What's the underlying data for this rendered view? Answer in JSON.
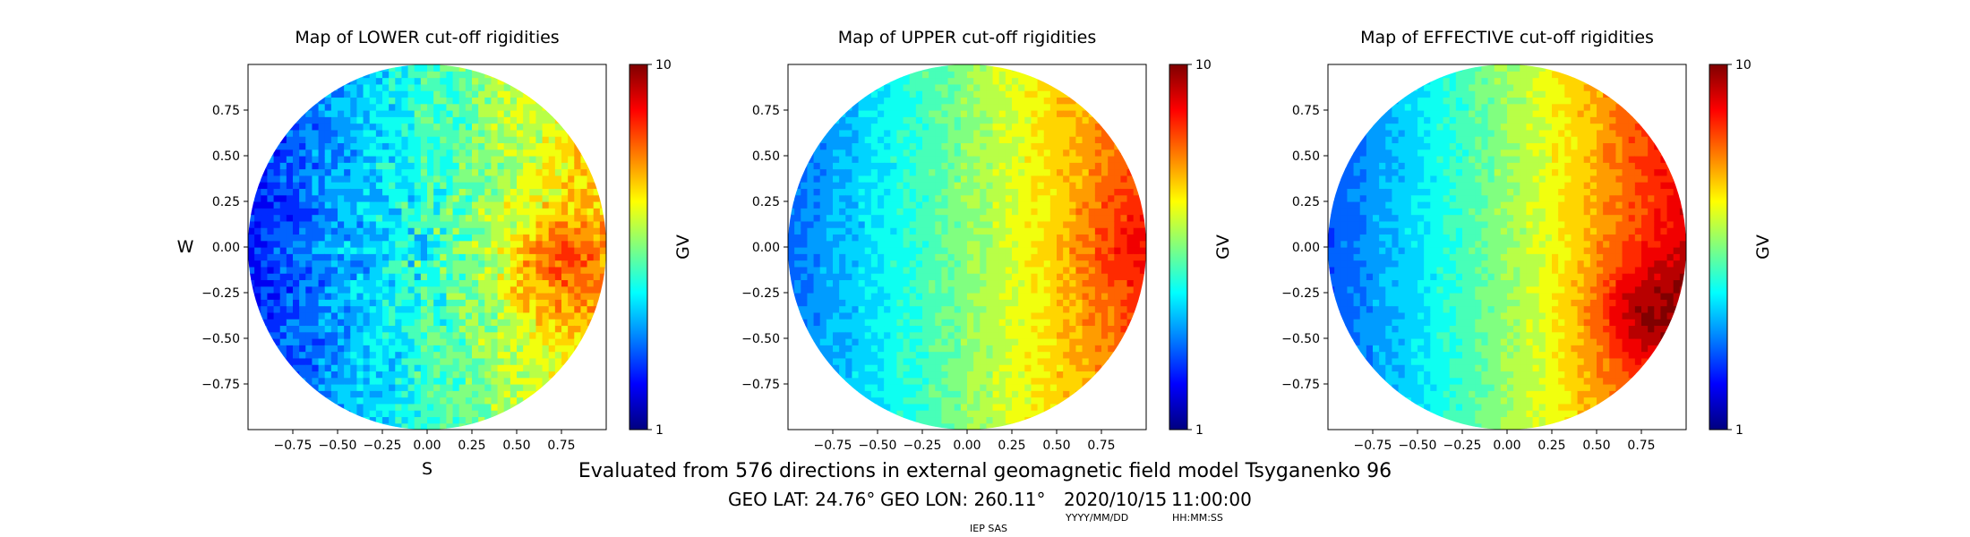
{
  "chart_data": [
    {
      "type": "heatmap",
      "title": "Map of LOWER cut-off rigidities",
      "xlabel": "S",
      "ylabel": "W",
      "xlim": [
        -1,
        1
      ],
      "ylim": [
        -1,
        1
      ],
      "xticks": [
        "−0.75",
        "−0.50",
        "−0.25",
        "0.00",
        "0.25",
        "0.50",
        "0.75"
      ],
      "yticks": [
        "0.75",
        "0.50",
        "0.25",
        "0.00",
        "−0.25",
        "−0.50",
        "−0.75"
      ],
      "colorbar": {
        "label": "GV",
        "min": 1,
        "max": 10,
        "ticks": [
          "10",
          "1"
        ],
        "colormap": "jet"
      },
      "field": {
        "west_edge": 2.3,
        "east_edge": 7.2,
        "center": 4.8,
        "bump": [
          0.7,
          -0.1,
          1.5
        ],
        "spokes": true,
        "noise": 1.2
      }
    },
    {
      "type": "heatmap",
      "title": "Map of UPPER cut-off rigidities",
      "xlabel": "",
      "ylabel": "",
      "xlim": [
        -1,
        1
      ],
      "ylim": [
        -1,
        1
      ],
      "xticks": [
        "−0.75",
        "−0.50",
        "−0.25",
        "0.00",
        "0.25",
        "0.50",
        "0.75"
      ],
      "yticks": [
        "0.75",
        "0.50",
        "0.25",
        "0.00",
        "−0.25",
        "−0.50",
        "−0.75"
      ],
      "colorbar": {
        "label": "GV",
        "min": 1,
        "max": 10,
        "ticks": [
          "10",
          "1"
        ],
        "colormap": "jet"
      },
      "field": {
        "west_edge": 3.0,
        "east_edge": 8.4,
        "center": 5.6,
        "bump": [
          0.85,
          0.0,
          0.6
        ],
        "spokes": false,
        "noise": 0.6
      }
    },
    {
      "type": "heatmap",
      "title": "Map of EFFECTIVE cut-off rigidities",
      "xlabel": "",
      "ylabel": "",
      "xlim": [
        -1,
        1
      ],
      "ylim": [
        -1,
        1
      ],
      "xticks": [
        "−0.75",
        "−0.50",
        "−0.25",
        "0.00",
        "0.25",
        "0.50",
        "0.75"
      ],
      "yticks": [
        "0.75",
        "0.50",
        "0.25",
        "0.00",
        "−0.25",
        "−0.50",
        "−0.75"
      ],
      "colorbar": {
        "label": "GV",
        "min": 1,
        "max": 10,
        "ticks": [
          "10",
          "1"
        ],
        "colormap": "jet"
      },
      "field": {
        "west_edge": 2.8,
        "east_edge": 9.2,
        "center": 5.7,
        "bump": [
          0.75,
          -0.35,
          1.4
        ],
        "spokes": false,
        "noise": 0.5
      }
    }
  ],
  "footer": {
    "description": "Evaluated from 576 directions in external geomagnetic field model Tsyganenko 96",
    "geo_lat": "GEO LAT: 24.76°",
    "geo_lon": "GEO LON: 260.11°",
    "date": "2020/10/15",
    "time": "11:00:00",
    "date_format": "YYYY/MM/DD",
    "time_format": "HH:MM:SS",
    "credit": "IEP SAS"
  }
}
